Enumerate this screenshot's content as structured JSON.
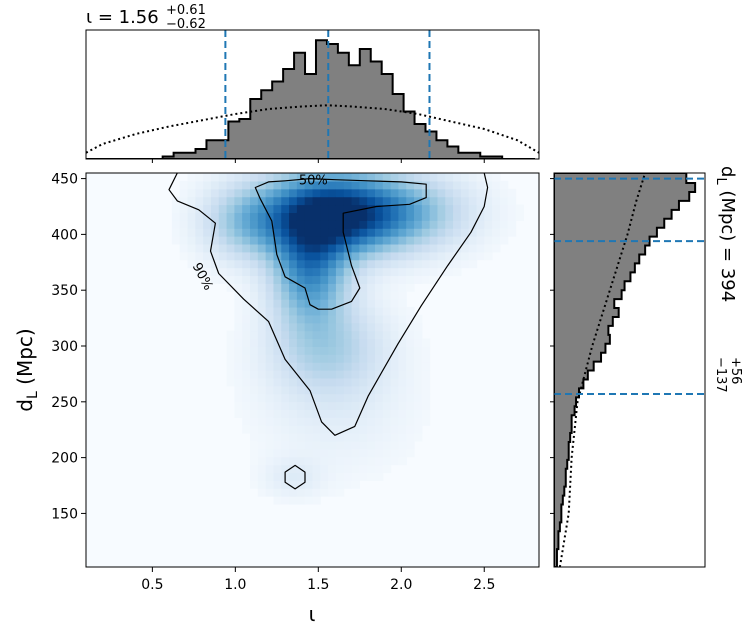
{
  "chart_data": {
    "type": "corner",
    "colors": {
      "density": "#08519c",
      "median_line": "#1f77b4",
      "hist_fill": "#808080"
    },
    "joint": {
      "type": "heatmap",
      "xlabel_main": "ι",
      "ylabel_main": "d",
      "ylabel_sub": "L",
      "ylabel_unit": "(Mpc)",
      "xlim": [
        0.1,
        2.83
      ],
      "ylim": [
        102,
        455
      ],
      "xticks": [
        "0.5",
        "1.0",
        "1.5",
        "2.0",
        "2.5"
      ],
      "yticks": [
        "150",
        "200",
        "250",
        "300",
        "350",
        "400",
        "450"
      ],
      "density_blobs": [
        {
          "x": 1.55,
          "y": 418,
          "sx": 0.26,
          "sy": 24,
          "w": 1.0
        },
        {
          "x": 1.45,
          "y": 370,
          "sx": 0.15,
          "sy": 32,
          "w": 0.6
        },
        {
          "x": 1.95,
          "y": 420,
          "sx": 0.28,
          "sy": 22,
          "w": 0.45
        },
        {
          "x": 1.08,
          "y": 412,
          "sx": 0.18,
          "sy": 22,
          "w": 0.3
        },
        {
          "x": 1.55,
          "y": 300,
          "sx": 0.22,
          "sy": 28,
          "w": 0.25
        },
        {
          "x": 1.6,
          "y": 250,
          "sx": 0.3,
          "sy": 40,
          "w": 0.06
        },
        {
          "x": 1.35,
          "y": 183,
          "sx": 0.12,
          "sy": 12,
          "w": 0.07
        }
      ],
      "contours": [
        {
          "label": "50%",
          "points": [
            [
              1.2,
              447
            ],
            [
              1.3,
              448
            ],
            [
              1.45,
              450
            ],
            [
              1.6,
              449
            ],
            [
              1.8,
              448
            ],
            [
              2.0,
              447
            ],
            [
              2.15,
              445
            ],
            [
              2.15,
              433
            ],
            [
              2.05,
              427
            ],
            [
              1.85,
              425
            ],
            [
              1.65,
              419
            ],
            [
              1.65,
              402
            ],
            [
              1.7,
              372
            ],
            [
              1.75,
              352
            ],
            [
              1.7,
              340
            ],
            [
              1.58,
              333
            ],
            [
              1.5,
              333
            ],
            [
              1.45,
              337
            ],
            [
              1.42,
              352
            ],
            [
              1.3,
              362
            ],
            [
              1.25,
              382
            ],
            [
              1.22,
              412
            ],
            [
              1.15,
              432
            ],
            [
              1.12,
              442
            ]
          ]
        },
        {
          "label": "90%",
          "points": [
            [
              0.65,
              455
            ],
            [
              0.6,
              440
            ],
            [
              0.65,
              430
            ],
            [
              0.78,
              422
            ],
            [
              0.88,
              410
            ],
            [
              0.85,
              385
            ],
            [
              0.9,
              365
            ],
            [
              1.05,
              342
            ],
            [
              1.2,
              322
            ],
            [
              1.3,
              288
            ],
            [
              1.45,
              260
            ],
            [
              1.52,
              232
            ],
            [
              1.6,
              220
            ],
            [
              1.72,
              228
            ],
            [
              1.8,
              255
            ],
            [
              1.98,
              302
            ],
            [
              2.12,
              336
            ],
            [
              2.28,
              372
            ],
            [
              2.42,
              402
            ],
            [
              2.5,
              425
            ],
            [
              2.52,
              442
            ],
            [
              2.5,
              455
            ]
          ]
        },
        {
          "label": "",
          "points": [
            [
              1.36,
              193
            ],
            [
              1.42,
              187
            ],
            [
              1.42,
              178
            ],
            [
              1.36,
              172
            ],
            [
              1.3,
              178
            ],
            [
              1.3,
              187
            ]
          ]
        }
      ]
    },
    "top_marginal": {
      "type": "bar",
      "param": "ι",
      "median": "1.56",
      "plus": "+0.61",
      "minus": "−0.62",
      "lines": [
        0.94,
        1.56,
        2.17
      ],
      "bins": [
        0.1,
        0.166,
        0.232,
        0.298,
        0.364,
        0.43,
        0.496,
        0.562,
        0.628,
        0.694,
        0.76,
        0.826,
        0.892,
        0.958,
        1.024,
        1.09,
        1.156,
        1.222,
        1.288,
        1.354,
        1.42,
        1.486,
        1.552,
        1.618,
        1.684,
        1.75,
        1.816,
        1.882,
        1.948,
        2.014,
        2.08,
        2.146,
        2.212,
        2.278,
        2.344,
        2.41,
        2.476,
        2.542,
        2.608,
        2.674,
        2.74,
        2.806
      ],
      "counts": [
        0,
        0,
        0,
        0,
        0,
        0,
        0,
        0.02,
        0.05,
        0.05,
        0.08,
        0.15,
        0.15,
        0.3,
        0.32,
        0.48,
        0.55,
        0.62,
        0.72,
        0.85,
        0.68,
        0.95,
        0.92,
        0.85,
        0.75,
        0.88,
        0.78,
        0.68,
        0.52,
        0.38,
        0.28,
        0.22,
        0.15,
        0.1,
        0.05,
        0.05,
        0.02,
        0.02,
        0,
        0,
        0
      ],
      "prior_x": [
        0.1,
        0.2,
        0.4,
        0.6,
        0.8,
        1.0,
        1.2,
        1.4,
        1.56,
        1.7,
        1.9,
        2.1,
        2.3,
        2.5,
        2.7,
        2.83
      ],
      "prior_y": [
        0.05,
        0.12,
        0.2,
        0.26,
        0.31,
        0.36,
        0.4,
        0.42,
        0.43,
        0.42,
        0.4,
        0.36,
        0.3,
        0.24,
        0.15,
        0.05
      ]
    },
    "right_marginal": {
      "type": "bar",
      "param": "d",
      "param_sub": "L",
      "unit": "(Mpc)",
      "median": "394",
      "plus": "+56",
      "minus": "−137",
      "lines": [
        450,
        394,
        257
      ],
      "bins": [
        102,
        110,
        118,
        126,
        134,
        142,
        150,
        158,
        166,
        174,
        182,
        190,
        198,
        206,
        214,
        222,
        230,
        238,
        246,
        254,
        262,
        270,
        278,
        286,
        294,
        302,
        310,
        318,
        326,
        334,
        342,
        350,
        358,
        366,
        374,
        382,
        390,
        398,
        406,
        414,
        422,
        430,
        438,
        446,
        455
      ],
      "counts": [
        0.02,
        0.02,
        0.03,
        0.03,
        0.04,
        0.05,
        0.05,
        0.06,
        0.07,
        0.08,
        0.08,
        0.09,
        0.1,
        0.1,
        0.11,
        0.12,
        0.12,
        0.14,
        0.15,
        0.17,
        0.2,
        0.23,
        0.27,
        0.32,
        0.35,
        0.38,
        0.37,
        0.4,
        0.44,
        0.41,
        0.46,
        0.48,
        0.52,
        0.55,
        0.58,
        0.62,
        0.65,
        0.7,
        0.75,
        0.8,
        0.85,
        0.92,
        0.96,
        0.9
      ],
      "prior_y": [
        102,
        150,
        200,
        250,
        300,
        350,
        400,
        430,
        455
      ],
      "prior_x": [
        0.04,
        0.1,
        0.12,
        0.16,
        0.26,
        0.38,
        0.5,
        0.56,
        0.62
      ]
    }
  }
}
